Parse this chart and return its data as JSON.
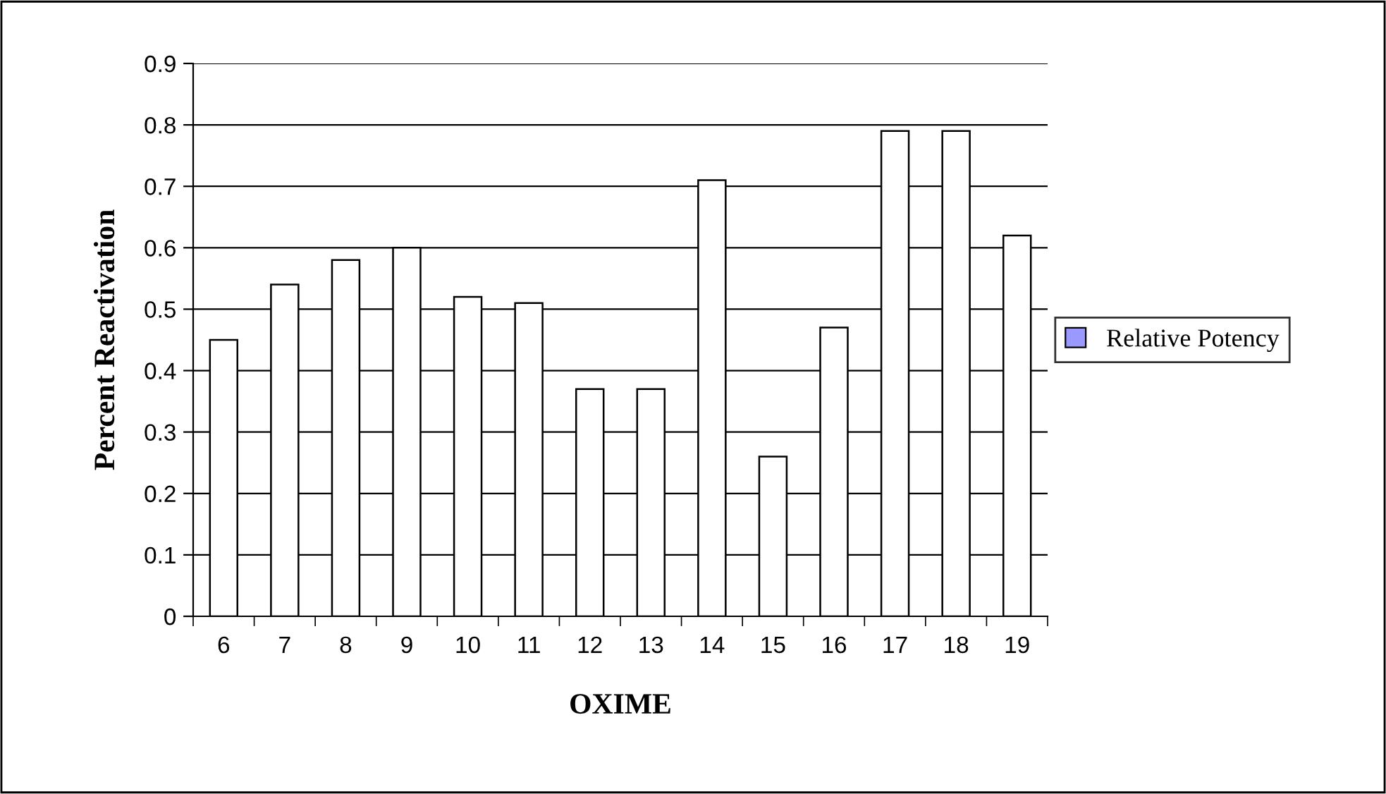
{
  "chart_data": {
    "type": "bar",
    "xlabel": "OXIME",
    "ylabel": "Percent Reactivation",
    "categories": [
      "6",
      "7",
      "8",
      "9",
      "10",
      "11",
      "12",
      "13",
      "14",
      "15",
      "16",
      "17",
      "18",
      "19"
    ],
    "series": [
      {
        "name": "Relative Potency",
        "color": "#ffffff",
        "values": [
          0.45,
          0.54,
          0.58,
          0.6,
          0.52,
          0.51,
          0.37,
          0.37,
          0.71,
          0.26,
          0.47,
          0.79,
          0.79,
          0.62
        ]
      }
    ],
    "ylim": [
      0,
      0.9
    ],
    "yticks": [
      0,
      0.1,
      0.2,
      0.3,
      0.4,
      0.5,
      0.6,
      0.7,
      0.8,
      0.9
    ],
    "grid": "y",
    "legend": "right"
  }
}
